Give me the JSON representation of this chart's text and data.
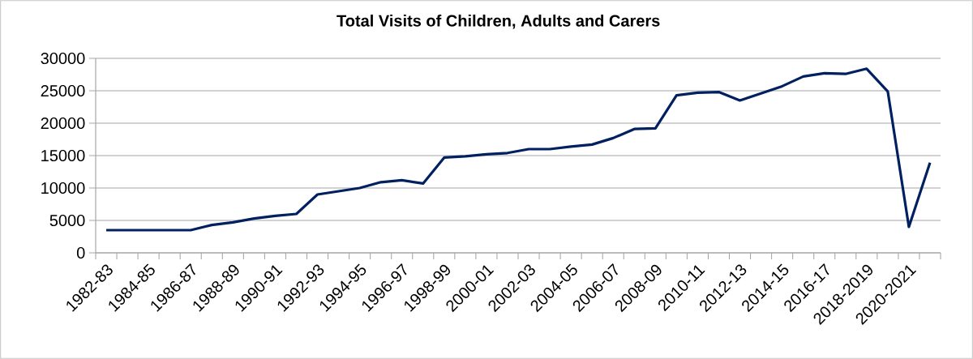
{
  "chart_data": {
    "type": "line",
    "title": "Total Visits of Children, Adults and Carers",
    "categories": [
      "1982-83",
      null,
      "1984-85",
      null,
      "1986-87",
      null,
      "1988-89",
      null,
      "1990-91",
      null,
      "1992-93",
      null,
      "1994-95",
      null,
      "1996-97",
      null,
      "1998-99",
      null,
      "2000-01",
      null,
      "2002-03",
      null,
      "2004-05",
      null,
      "2006-07",
      null,
      "2008-09",
      null,
      "2010-11",
      null,
      "2012-13",
      null,
      "2014-15",
      null,
      "2016-17",
      null,
      "2018-2019",
      null,
      "2020-2021",
      null
    ],
    "series": [
      {
        "color": "#002060",
        "values": [
          3500,
          3500,
          3500,
          3500,
          3500,
          4300,
          4700,
          5300,
          5700,
          6000,
          9000,
          9500,
          10000,
          10900,
          11200,
          10700,
          14700,
          14900,
          15200,
          15400,
          16000,
          16000,
          16400,
          16700,
          17700,
          19100,
          19200,
          24300,
          24700,
          24800,
          23500,
          24600,
          25700,
          27200,
          27700,
          27600,
          28400,
          24900,
          4000,
          13900
        ]
      }
    ],
    "ylim": [
      0,
      30000
    ],
    "yticks": [
      0,
      5000,
      10000,
      15000,
      20000,
      25000,
      30000
    ],
    "grid": "y"
  }
}
